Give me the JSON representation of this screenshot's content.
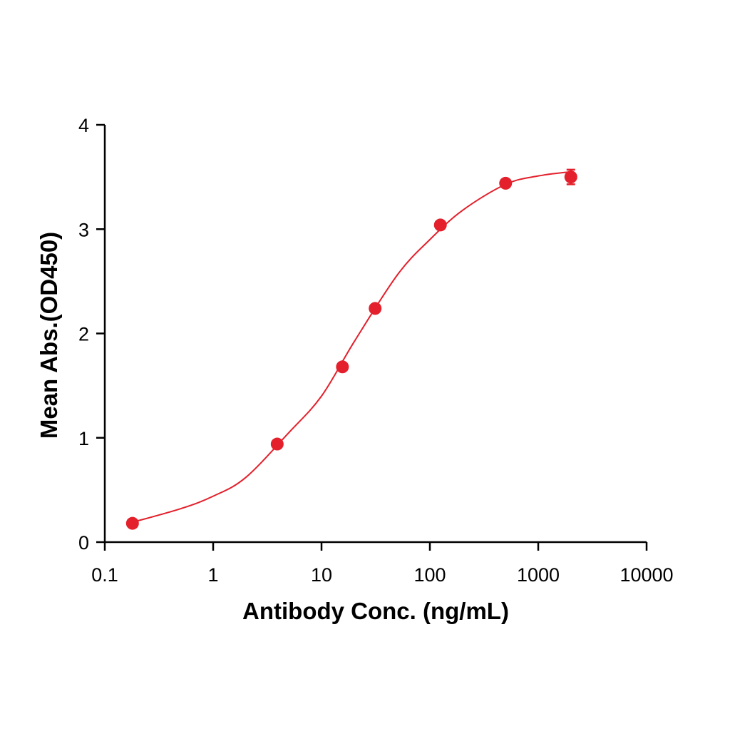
{
  "chart_data": {
    "type": "scatter",
    "x_label": "Antibody Conc. (ng/mL)",
    "y_label": "Mean Abs.(OD450)",
    "x_scale": "log",
    "xlim": [
      0.1,
      10000
    ],
    "xticks": [
      0.1,
      1,
      10,
      100,
      1000,
      10000
    ],
    "ylim": [
      0,
      4
    ],
    "yticks": [
      0,
      1,
      2,
      3,
      4
    ],
    "series": [
      {
        "type": "scatter",
        "color": "#e3202b",
        "x": [
          0.18,
          3.9,
          15.6,
          31.25,
          125,
          500,
          2000
        ],
        "values": [
          0.18,
          0.94,
          1.68,
          2.24,
          3.04,
          3.44,
          3.5
        ],
        "errors": [
          0,
          0,
          0,
          0,
          0,
          0,
          0.07
        ]
      },
      {
        "type": "line",
        "color": "#e3202b",
        "x": [
          0.18,
          0.5,
          1,
          2,
          5,
          10,
          20,
          50,
          100,
          200,
          500,
          1000,
          2000
        ],
        "values": [
          0.19,
          0.32,
          0.44,
          0.62,
          1.05,
          1.4,
          1.92,
          2.56,
          2.9,
          3.18,
          3.43,
          3.51,
          3.55
        ]
      }
    ]
  }
}
